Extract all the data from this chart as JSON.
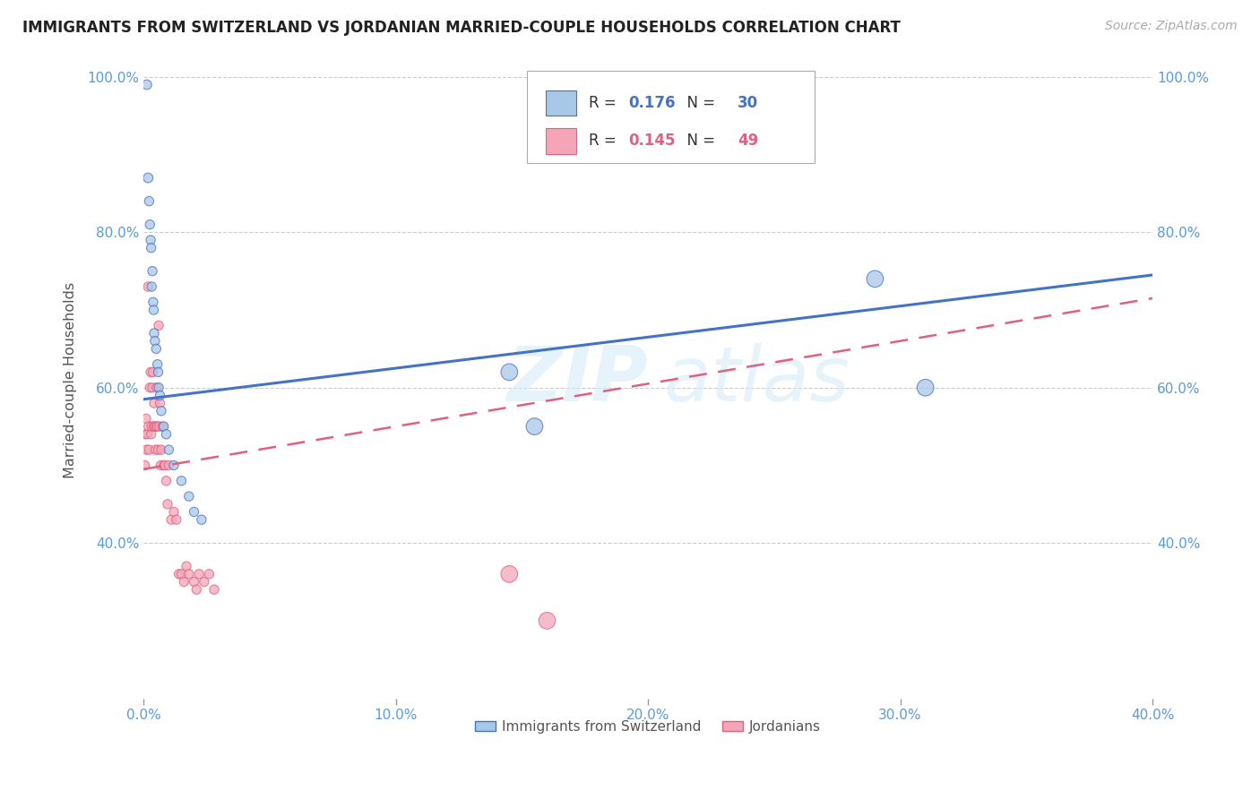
{
  "title": "IMMIGRANTS FROM SWITZERLAND VS JORDANIAN MARRIED-COUPLE HOUSEHOLDS CORRELATION CHART",
  "source": "Source: ZipAtlas.com",
  "ylabel": "Married-couple Households",
  "legend_label1": "Immigrants from Switzerland",
  "legend_label2": "Jordanians",
  "R1": 0.176,
  "N1": 30,
  "R2": 0.145,
  "N2": 49,
  "xmin": 0.0,
  "xmax": 0.4,
  "ymin": 0.2,
  "ymax": 1.02,
  "color_blue": "#a8c8e8",
  "color_pink": "#f4a6b8",
  "color_blue_line": "#4472c4",
  "color_pink_line": "#e06080",
  "color_axis_text": "#5b9bd5",
  "watermark_text": "ZIP atlas",
  "swiss_x": [
    0.0013,
    0.0018,
    0.0022,
    0.0025,
    0.0028,
    0.003,
    0.0032,
    0.0035,
    0.0038,
    0.004,
    0.0042,
    0.0045,
    0.005,
    0.0055,
    0.0058,
    0.006,
    0.0065,
    0.007,
    0.008,
    0.009,
    0.01,
    0.012,
    0.015,
    0.018,
    0.02,
    0.023,
    0.145,
    0.155,
    0.29,
    0.31
  ],
  "swiss_y": [
    0.99,
    0.87,
    0.84,
    0.81,
    0.79,
    0.78,
    0.73,
    0.75,
    0.71,
    0.7,
    0.67,
    0.66,
    0.65,
    0.63,
    0.62,
    0.6,
    0.59,
    0.57,
    0.55,
    0.54,
    0.52,
    0.5,
    0.48,
    0.46,
    0.44,
    0.43,
    0.62,
    0.55,
    0.74,
    0.6
  ],
  "swiss_sizes": [
    60,
    60,
    55,
    55,
    55,
    55,
    55,
    55,
    55,
    55,
    55,
    55,
    55,
    55,
    55,
    55,
    55,
    55,
    55,
    55,
    55,
    55,
    55,
    55,
    55,
    55,
    180,
    180,
    180,
    180
  ],
  "jordan_x": [
    0.0005,
    0.0008,
    0.001,
    0.0012,
    0.0015,
    0.0018,
    0.002,
    0.0022,
    0.0025,
    0.0028,
    0.003,
    0.0032,
    0.0035,
    0.0037,
    0.004,
    0.0042,
    0.0045,
    0.0048,
    0.005,
    0.0052,
    0.0055,
    0.0058,
    0.006,
    0.0063,
    0.0065,
    0.0068,
    0.007,
    0.0075,
    0.008,
    0.0085,
    0.009,
    0.0095,
    0.01,
    0.011,
    0.012,
    0.013,
    0.014,
    0.015,
    0.016,
    0.017,
    0.018,
    0.02,
    0.021,
    0.022,
    0.024,
    0.026,
    0.028,
    0.145,
    0.16
  ],
  "jordan_y": [
    0.5,
    0.54,
    0.56,
    0.52,
    0.54,
    0.73,
    0.55,
    0.52,
    0.6,
    0.62,
    0.54,
    0.55,
    0.6,
    0.62,
    0.55,
    0.58,
    0.55,
    0.52,
    0.55,
    0.6,
    0.55,
    0.52,
    0.68,
    0.55,
    0.58,
    0.5,
    0.52,
    0.55,
    0.5,
    0.5,
    0.48,
    0.45,
    0.5,
    0.43,
    0.44,
    0.43,
    0.36,
    0.36,
    0.35,
    0.37,
    0.36,
    0.35,
    0.34,
    0.36,
    0.35,
    0.36,
    0.34,
    0.36,
    0.3
  ],
  "jordan_sizes": [
    55,
    55,
    55,
    55,
    55,
    55,
    55,
    55,
    55,
    55,
    55,
    55,
    55,
    55,
    55,
    55,
    55,
    55,
    55,
    55,
    55,
    55,
    55,
    55,
    55,
    55,
    55,
    55,
    55,
    55,
    55,
    55,
    55,
    55,
    55,
    55,
    55,
    55,
    55,
    55,
    55,
    55,
    55,
    55,
    55,
    55,
    55,
    180,
    180
  ],
  "yticks": [
    0.4,
    0.6,
    0.8,
    1.0
  ],
  "ytick_labels": [
    "40.0%",
    "60.0%",
    "80.0%",
    "100.0%"
  ],
  "xticks": [
    0.0,
    0.1,
    0.2,
    0.3,
    0.4
  ],
  "xtick_labels": [
    "0.0%",
    "10.0%",
    "20.0%",
    "30.0%",
    "40.0%"
  ]
}
